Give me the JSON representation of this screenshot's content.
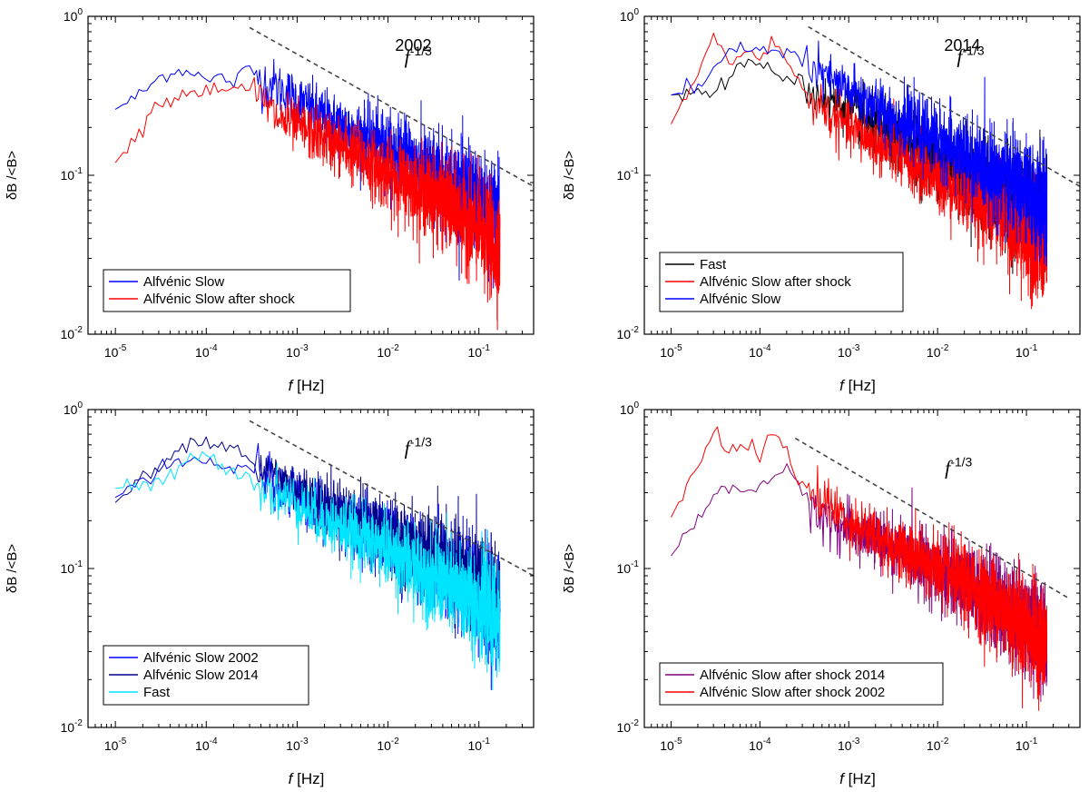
{
  "chart_data": [
    {
      "type": "line",
      "title": "",
      "annotation": "2002",
      "slope_label": "-1/3",
      "xlabel": "f [Hz]",
      "ylabel": "δB /<B>",
      "xscale": "log",
      "yscale": "log",
      "xlim": [
        5e-06,
        0.4
      ],
      "ylim": [
        0.01,
        1
      ],
      "x_ticks": [
        "10-5",
        "10-4",
        "10-3",
        "10-2",
        "10-1"
      ],
      "y_ticks": [
        "10-2",
        "10-1",
        "100"
      ],
      "legend_position": "bottom-left",
      "reference_line": {
        "style": "dashed",
        "color": "#444444",
        "from": [
          0.0003,
          0.85
        ],
        "to": [
          0.4,
          0.085
        ]
      },
      "series": [
        {
          "name": "Alfvénic Slow",
          "color": "#0000ff",
          "x": [
            1e-05,
            2e-05,
            3e-05,
            4.5e-05,
            6e-05,
            8e-05,
            0.0001,
            0.00014,
            0.0002,
            0.00026,
            0.00032,
            0.0004,
            0.0006,
            0.001,
            0.002,
            0.005,
            0.01,
            0.02,
            0.05,
            0.1,
            0.17
          ],
          "y": [
            0.26,
            0.33,
            0.41,
            0.46,
            0.45,
            0.46,
            0.38,
            0.42,
            0.38,
            0.45,
            0.47,
            0.4,
            0.36,
            0.3,
            0.23,
            0.18,
            0.15,
            0.12,
            0.09,
            0.07,
            0.055
          ]
        },
        {
          "name": "Alfvénic Slow after shock",
          "color": "#ff0000",
          "x": [
            1e-05,
            2e-05,
            3e-05,
            4.5e-05,
            6e-05,
            8e-05,
            0.0001,
            0.00014,
            0.0002,
            0.00026,
            0.00032,
            0.0004,
            0.0006,
            0.001,
            0.002,
            0.005,
            0.01,
            0.02,
            0.05,
            0.1,
            0.17
          ],
          "y": [
            0.12,
            0.2,
            0.3,
            0.3,
            0.34,
            0.33,
            0.35,
            0.34,
            0.38,
            0.34,
            0.32,
            0.3,
            0.23,
            0.2,
            0.17,
            0.13,
            0.1,
            0.085,
            0.063,
            0.045,
            0.033
          ]
        }
      ]
    },
    {
      "type": "line",
      "title": "",
      "annotation": "2014",
      "slope_label": "-1/3",
      "xlabel": "f [Hz]",
      "ylabel": "δB /<B>",
      "xscale": "log",
      "yscale": "log",
      "xlim": [
        5e-06,
        0.4
      ],
      "ylim": [
        0.01,
        1
      ],
      "x_ticks": [
        "10-5",
        "10-4",
        "10-3",
        "10-2",
        "10-1"
      ],
      "y_ticks": [
        "10-2",
        "10-1",
        "100"
      ],
      "legend_position": "bottom-left",
      "reference_line": {
        "style": "dashed",
        "color": "#444444",
        "from": [
          0.00035,
          0.86
        ],
        "to": [
          0.4,
          0.085
        ]
      },
      "series": [
        {
          "name": "Fast",
          "color": "#000000",
          "x": [
            1e-05,
            2e-05,
            3e-05,
            4.5e-05,
            6e-05,
            8e-05,
            0.0001,
            0.00014,
            0.0002,
            0.00026,
            0.00032,
            0.0004,
            0.0006,
            0.001,
            0.002,
            0.005,
            0.01,
            0.02,
            0.05,
            0.1,
            0.17
          ],
          "y": [
            0.32,
            0.33,
            0.34,
            0.4,
            0.47,
            0.5,
            0.52,
            0.46,
            0.42,
            0.38,
            0.4,
            0.33,
            0.3,
            0.26,
            0.2,
            0.16,
            0.13,
            0.1,
            0.075,
            0.06,
            0.045
          ]
        },
        {
          "name": "Alfvénic Slow after shock",
          "color": "#ff0000",
          "x": [
            1e-05,
            2e-05,
            3e-05,
            4.5e-05,
            6e-05,
            8e-05,
            0.0001,
            0.00014,
            0.0002,
            0.00026,
            0.00032,
            0.0004,
            0.0006,
            0.001,
            0.002,
            0.005,
            0.01,
            0.02,
            0.05,
            0.1,
            0.17
          ],
          "y": [
            0.21,
            0.45,
            0.75,
            0.5,
            0.58,
            0.6,
            0.52,
            0.72,
            0.5,
            0.4,
            0.33,
            0.3,
            0.24,
            0.2,
            0.16,
            0.12,
            0.1,
            0.08,
            0.058,
            0.042,
            0.032
          ]
        },
        {
          "name": "Alfvénic Slow",
          "color": "#0000ff",
          "x": [
            1e-05,
            2e-05,
            3e-05,
            4.5e-05,
            6e-05,
            8e-05,
            0.0001,
            0.00014,
            0.0002,
            0.00026,
            0.00032,
            0.0004,
            0.0006,
            0.001,
            0.002,
            0.005,
            0.01,
            0.02,
            0.05,
            0.1,
            0.17
          ],
          "y": [
            0.32,
            0.35,
            0.45,
            0.58,
            0.62,
            0.66,
            0.63,
            0.62,
            0.6,
            0.55,
            0.5,
            0.45,
            0.4,
            0.34,
            0.27,
            0.2,
            0.17,
            0.13,
            0.1,
            0.08,
            0.062
          ]
        }
      ]
    },
    {
      "type": "line",
      "title": "",
      "annotation": "",
      "slope_label": "-1/3",
      "xlabel": "f [Hz]",
      "ylabel": "δB /<B>",
      "xscale": "log",
      "yscale": "log",
      "xlim": [
        5e-06,
        0.4
      ],
      "ylim": [
        0.01,
        1
      ],
      "x_ticks": [
        "10-5",
        "10-4",
        "10-3",
        "10-2",
        "10-1"
      ],
      "y_ticks": [
        "10-2",
        "10-1",
        "100"
      ],
      "legend_position": "bottom-left",
      "reference_line": {
        "style": "dashed",
        "color": "#444444",
        "from": [
          0.0003,
          0.85
        ],
        "to": [
          0.4,
          0.09
        ]
      },
      "series": [
        {
          "name": "Alfvénic Slow 2002",
          "color": "#0000ff",
          "x": [
            1e-05,
            2e-05,
            3e-05,
            4.5e-05,
            6e-05,
            8e-05,
            0.0001,
            0.00014,
            0.0002,
            0.00026,
            0.00032,
            0.0004,
            0.0006,
            0.001,
            0.002,
            0.005,
            0.01,
            0.02,
            0.05,
            0.1,
            0.17
          ],
          "y": [
            0.28,
            0.35,
            0.42,
            0.46,
            0.48,
            0.5,
            0.44,
            0.43,
            0.4,
            0.44,
            0.46,
            0.4,
            0.34,
            0.29,
            0.23,
            0.18,
            0.15,
            0.12,
            0.09,
            0.07,
            0.055
          ]
        },
        {
          "name": "Alfvénic Slow  2014",
          "color": "#00008b",
          "x": [
            1e-05,
            2e-05,
            3e-05,
            4.5e-05,
            6e-05,
            8e-05,
            0.0001,
            0.00014,
            0.0002,
            0.00026,
            0.00032,
            0.0004,
            0.0006,
            0.001,
            0.002,
            0.005,
            0.01,
            0.02,
            0.05,
            0.1,
            0.17
          ],
          "y": [
            0.26,
            0.38,
            0.4,
            0.55,
            0.62,
            0.68,
            0.65,
            0.58,
            0.62,
            0.52,
            0.45,
            0.42,
            0.38,
            0.32,
            0.26,
            0.2,
            0.16,
            0.13,
            0.1,
            0.08,
            0.06
          ]
        },
        {
          "name": "Fast",
          "color": "#00e5ff",
          "x": [
            1e-05,
            2e-05,
            3e-05,
            4.5e-05,
            6e-05,
            8e-05,
            0.0001,
            0.00014,
            0.0002,
            0.00026,
            0.00032,
            0.0004,
            0.0006,
            0.001,
            0.002,
            0.005,
            0.01,
            0.02,
            0.05,
            0.1,
            0.17
          ],
          "y": [
            0.32,
            0.33,
            0.34,
            0.4,
            0.46,
            0.5,
            0.52,
            0.46,
            0.42,
            0.38,
            0.4,
            0.33,
            0.3,
            0.26,
            0.2,
            0.16,
            0.13,
            0.1,
            0.075,
            0.06,
            0.045
          ]
        }
      ]
    },
    {
      "type": "line",
      "title": "",
      "annotation": "",
      "slope_label": "-1/3",
      "xlabel": "f [Hz]",
      "ylabel": "δB /<B>",
      "xscale": "log",
      "yscale": "log",
      "xlim": [
        5e-06,
        0.4
      ],
      "ylim": [
        0.01,
        1
      ],
      "x_ticks": [
        "10-5",
        "10-4",
        "10-3",
        "10-2",
        "10-1"
      ],
      "y_ticks": [
        "10-2",
        "10-1",
        "100"
      ],
      "legend_position": "bottom-left",
      "reference_line": {
        "style": "dashed",
        "color": "#444444",
        "from": [
          0.00025,
          0.66
        ],
        "to": [
          0.3,
          0.065
        ]
      },
      "series": [
        {
          "name": "Alfvénic Slow after shock 2014",
          "color": "#800080",
          "x": [
            1e-05,
            2e-05,
            3e-05,
            4.5e-05,
            6e-05,
            8e-05,
            0.0001,
            0.00014,
            0.0002,
            0.00026,
            0.00032,
            0.0004,
            0.0006,
            0.001,
            0.002,
            0.005,
            0.01,
            0.02,
            0.05,
            0.1,
            0.17
          ],
          "y": [
            0.12,
            0.2,
            0.29,
            0.32,
            0.33,
            0.31,
            0.34,
            0.38,
            0.4,
            0.33,
            0.27,
            0.25,
            0.2,
            0.17,
            0.15,
            0.12,
            0.1,
            0.08,
            0.06,
            0.046,
            0.035
          ]
        },
        {
          "name": "Alfvénic Slow after shock 2002",
          "color": "#ff0000",
          "x": [
            1e-05,
            2e-05,
            3e-05,
            4.5e-05,
            6e-05,
            8e-05,
            0.0001,
            0.00014,
            0.0002,
            0.00026,
            0.00032,
            0.0004,
            0.0006,
            0.001,
            0.002,
            0.005,
            0.01,
            0.02,
            0.05,
            0.1,
            0.17
          ],
          "y": [
            0.21,
            0.45,
            0.75,
            0.52,
            0.6,
            0.6,
            0.5,
            0.72,
            0.55,
            0.38,
            0.33,
            0.3,
            0.25,
            0.2,
            0.16,
            0.12,
            0.1,
            0.08,
            0.058,
            0.042,
            0.032
          ]
        }
      ]
    }
  ]
}
